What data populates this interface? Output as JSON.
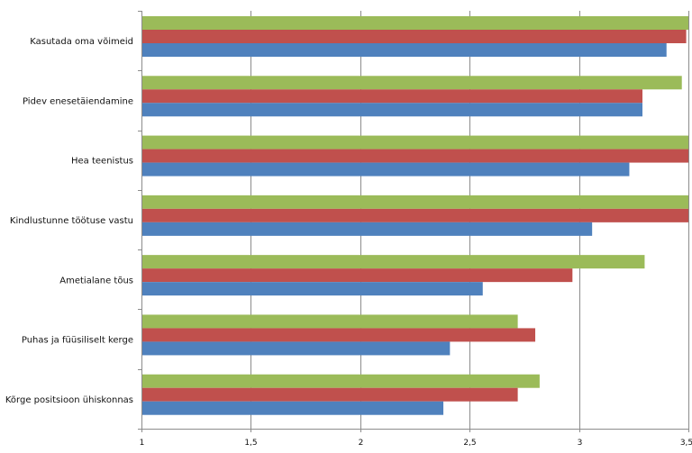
{
  "chart_data": {
    "type": "bar",
    "orientation": "horizontal",
    "categories": [
      "Kasutada oma võimeid",
      "Pidev enesetäiendamine",
      "Hea teenistus",
      "Kindlustunne töötuse vastu",
      "Ametialane tõus",
      "Puhas ja füüsiliselt kerge",
      "Kõrge positsioon ühiskonnas"
    ],
    "series": [
      {
        "color": "#9bbb59",
        "values": [
          3.52,
          3.47,
          3.51,
          3.5,
          3.3,
          2.72,
          2.82
        ]
      },
      {
        "color": "#c0504d",
        "values": [
          3.49,
          3.29,
          3.56,
          3.58,
          2.97,
          2.8,
          2.72
        ]
      },
      {
        "color": "#4f81bd",
        "values": [
          3.4,
          3.29,
          3.23,
          3.06,
          2.56,
          2.41,
          2.38
        ]
      }
    ],
    "xlim": [
      1,
      3.5
    ],
    "xticks": [
      1,
      1.5,
      2,
      2.5,
      3,
      3.5
    ],
    "xtick_labels": [
      "1",
      "1,5",
      "2",
      "2,5",
      "3",
      "3,5"
    ],
    "grid": true,
    "legend": "none",
    "title": "",
    "xlabel": "",
    "ylabel": ""
  }
}
